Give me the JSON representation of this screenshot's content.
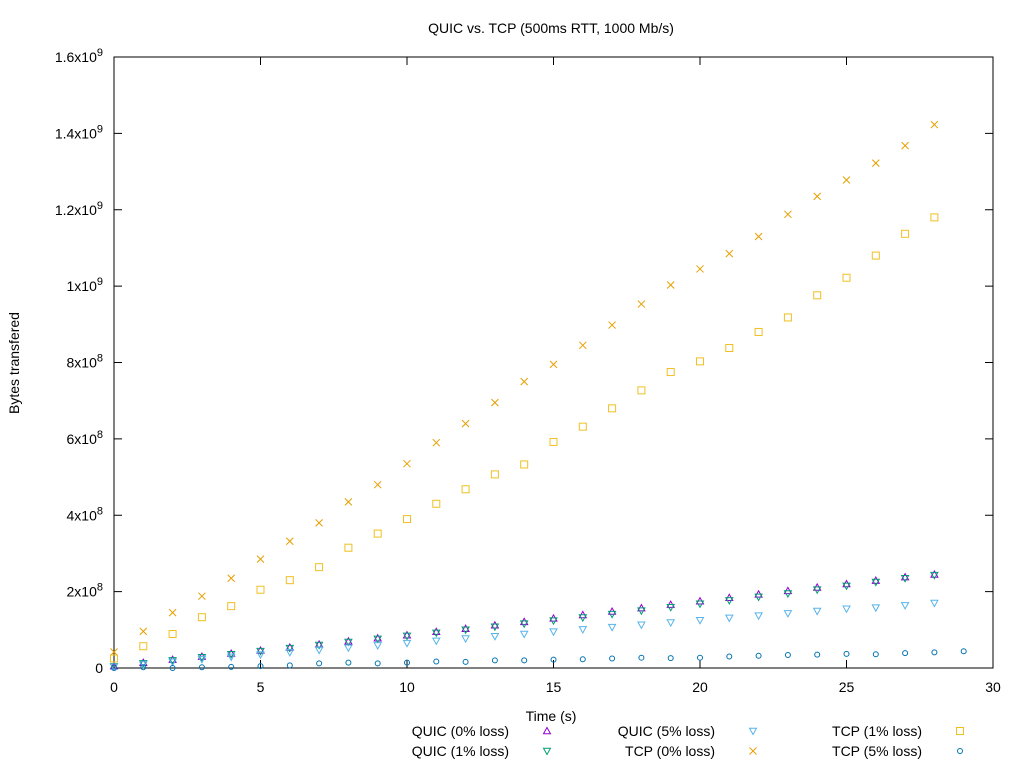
{
  "chart_data": {
    "type": "scatter",
    "title": "QUIC vs. TCP (500ms RTT, 1000 Mb/s)",
    "xlabel": "Time (s)",
    "ylabel": "Bytes transfered",
    "xlim": [
      0,
      30
    ],
    "ylim": [
      0,
      1600000000.0
    ],
    "x_ticks": [
      0,
      5,
      10,
      15,
      20,
      25,
      30
    ],
    "y_ticks": [
      {
        "value": 0,
        "label": "0"
      },
      {
        "value": 200000000,
        "mant": "2x10",
        "exp": "8"
      },
      {
        "value": 400000000,
        "mant": "4x10",
        "exp": "8"
      },
      {
        "value": 600000000,
        "mant": "6x10",
        "exp": "8"
      },
      {
        "value": 800000000,
        "mant": "8x10",
        "exp": "8"
      },
      {
        "value": 1000000000,
        "mant": "1x10",
        "exp": "9"
      },
      {
        "value": 1200000000,
        "mant": "1.2x10",
        "exp": "9"
      },
      {
        "value": 1400000000,
        "mant": "1.4x10",
        "exp": "9"
      },
      {
        "value": 1600000000,
        "mant": "1.6x10",
        "exp": "9"
      }
    ],
    "grid": false,
    "legend_position": "bottom",
    "series": [
      {
        "name": "QUIC (0% loss)",
        "marker": "triangle-up",
        "color": "#9400d3",
        "x": [
          0,
          1,
          2,
          3,
          4,
          5,
          6,
          7,
          8,
          9,
          10,
          11,
          12,
          13,
          14,
          15,
          16,
          17,
          18,
          19,
          20,
          21,
          22,
          23,
          24,
          25,
          26,
          27,
          28
        ],
        "y": [
          5000000,
          14000000,
          22000000,
          30000000,
          38000000,
          46000000,
          54000000,
          62000000,
          70000000,
          78000000,
          86000000,
          95000000,
          103000000,
          112000000,
          121000000,
          130000000,
          139000000,
          148000000,
          157000000,
          166000000,
          175000000,
          184000000,
          193000000,
          202000000,
          211000000,
          220000000,
          229000000,
          238000000,
          245000000
        ]
      },
      {
        "name": "QUIC (1% loss)",
        "marker": "triangle-down",
        "color": "#009e73",
        "x": [
          0,
          1,
          2,
          3,
          4,
          5,
          6,
          7,
          8,
          9,
          10,
          11,
          12,
          13,
          14,
          15,
          16,
          17,
          18,
          19,
          20,
          21,
          22,
          23,
          24,
          25,
          26,
          27,
          28
        ],
        "y": [
          4000000,
          12000000,
          20000000,
          28000000,
          36000000,
          44000000,
          52000000,
          60000000,
          68000000,
          76000000,
          84000000,
          92000000,
          100000000,
          108000000,
          116000000,
          124000000,
          132000000,
          141000000,
          150000000,
          159000000,
          168000000,
          177000000,
          186000000,
          195000000,
          205000000,
          215000000,
          225000000,
          235000000,
          243000000
        ]
      },
      {
        "name": "QUIC (5% loss)",
        "marker": "triangle-down",
        "color": "#56b4e9",
        "x": [
          0,
          1,
          2,
          3,
          4,
          5,
          6,
          7,
          8,
          9,
          10,
          11,
          12,
          13,
          14,
          15,
          16,
          17,
          18,
          19,
          20,
          21,
          22,
          23,
          24,
          25,
          26,
          27,
          28
        ],
        "y": [
          3000000,
          9000000,
          16000000,
          23000000,
          29000000,
          35000000,
          41000000,
          47000000,
          53000000,
          59000000,
          65000000,
          71000000,
          77000000,
          83000000,
          89000000,
          95000000,
          101000000,
          107000000,
          113000000,
          119000000,
          125000000,
          131000000,
          137000000,
          143000000,
          149000000,
          155000000,
          158000000,
          164000000,
          170000000
        ]
      },
      {
        "name": "TCP (0% loss)",
        "marker": "cross",
        "color": "#e69f00",
        "x": [
          0,
          1,
          2,
          3,
          4,
          5,
          6,
          7,
          8,
          9,
          10,
          11,
          12,
          13,
          14,
          15,
          16,
          17,
          18,
          19,
          20,
          21,
          22,
          23,
          24,
          25,
          26,
          27,
          28
        ],
        "y": [
          42000000,
          96000000,
          145000000,
          188000000,
          235000000,
          285000000,
          332000000,
          380000000,
          435000000,
          480000000,
          535000000,
          590000000,
          640000000,
          695000000,
          750000000,
          795000000,
          845000000,
          898000000,
          953000000,
          1003000000,
          1045000000,
          1085000000,
          1130000000,
          1188000000,
          1235000000,
          1278000000,
          1322000000,
          1368000000,
          1423000000
        ]
      },
      {
        "name": "TCP (1% loss)",
        "marker": "square",
        "color": "#f0c020",
        "x": [
          0,
          1,
          2,
          3,
          4,
          5,
          6,
          7,
          8,
          9,
          10,
          11,
          12,
          13,
          14,
          15,
          16,
          17,
          18,
          19,
          20,
          21,
          22,
          23,
          24,
          25,
          26,
          27,
          28
        ],
        "y": [
          25000000,
          57000000,
          89000000,
          133000000,
          162000000,
          205000000,
          230000000,
          264000000,
          315000000,
          352000000,
          390000000,
          430000000,
          468000000,
          507000000,
          533000000,
          592000000,
          632000000,
          680000000,
          727000000,
          775000000,
          803000000,
          838000000,
          880000000,
          918000000,
          976000000,
          1022000000,
          1080000000,
          1137000000,
          1180000000
        ]
      },
      {
        "name": "TCP (5% loss)",
        "marker": "circle",
        "color": "#0072b2",
        "x": [
          0,
          1,
          2,
          3,
          4,
          5,
          6,
          7,
          8,
          9,
          10,
          11,
          12,
          13,
          14,
          15,
          16,
          17,
          18,
          19,
          20,
          21,
          22,
          23,
          24,
          25,
          26,
          27,
          28,
          29
        ],
        "y": [
          0,
          2000000,
          0,
          2000000,
          3000000,
          5000000,
          7000000,
          12000000,
          14000000,
          12000000,
          14000000,
          17000000,
          16000000,
          20000000,
          20000000,
          22000000,
          23000000,
          25000000,
          27000000,
          26000000,
          27000000,
          30000000,
          32000000,
          34000000,
          35000000,
          37000000,
          36000000,
          39000000,
          41000000,
          44000000
        ]
      }
    ]
  }
}
